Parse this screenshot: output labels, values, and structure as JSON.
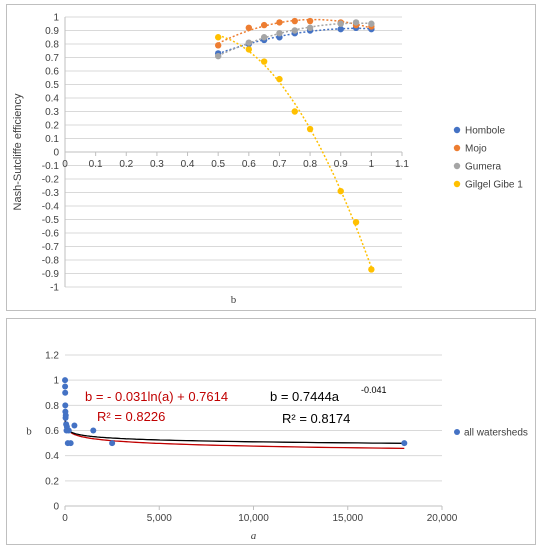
{
  "chart_data": [
    {
      "type": "scatter",
      "xlabel": "b",
      "ylabel": "Nash-Sutcliffe efficiency",
      "xlim": [
        0,
        1.1
      ],
      "ylim": [
        -1,
        1
      ],
      "xticks": [
        "0",
        "0.1",
        "0.2",
        "0.3",
        "0.4",
        "0.5",
        "0.6",
        "0.7",
        "0.8",
        "0.9",
        "1",
        "1.1"
      ],
      "yticks": [
        "1",
        "0.9",
        "0.8",
        "0.7",
        "0.6",
        "0.5",
        "0.4",
        "0.3",
        "0.2",
        "0.1",
        "0",
        "-0.1",
        "-0.2",
        "-0.3",
        "-0.4",
        "-0.5",
        "-0.6",
        "-0.7",
        "-0.8",
        "-0.9",
        "-1"
      ],
      "legend_position": "right",
      "grid": true,
      "series": [
        {
          "name": "Hombole",
          "color": "#4472C4",
          "x": [
            0.5,
            0.6,
            0.65,
            0.7,
            0.75,
            0.8,
            0.9,
            0.95,
            1.0
          ],
          "y": [
            0.73,
            0.8,
            0.83,
            0.85,
            0.88,
            0.9,
            0.91,
            0.92,
            0.91
          ],
          "trend": "poly2"
        },
        {
          "name": "Mojo",
          "color": "#ED7D31",
          "x": [
            0.5,
            0.6,
            0.65,
            0.7,
            0.75,
            0.8,
            0.9,
            0.95,
            1.0
          ],
          "y": [
            0.79,
            0.92,
            0.94,
            0.96,
            0.97,
            0.97,
            0.96,
            0.94,
            0.93
          ],
          "trend": "poly2"
        },
        {
          "name": "Gumera",
          "color": "#A5A5A5",
          "x": [
            0.5,
            0.6,
            0.65,
            0.7,
            0.75,
            0.8,
            0.9,
            0.95,
            1.0
          ],
          "y": [
            0.71,
            0.81,
            0.85,
            0.88,
            0.9,
            0.92,
            0.95,
            0.96,
            0.95
          ],
          "trend": "poly2"
        },
        {
          "name": "Gilgel Gibe 1",
          "color": "#FFC000",
          "x": [
            0.5,
            0.6,
            0.65,
            0.7,
            0.75,
            0.8,
            0.9,
            0.95,
            1.0
          ],
          "y": [
            0.85,
            0.76,
            0.67,
            0.54,
            0.3,
            0.17,
            -0.29,
            -0.52,
            -0.87
          ],
          "trend": "poly2"
        }
      ]
    },
    {
      "type": "scatter",
      "xlabel": "a",
      "ylabel": "b",
      "xlim": [
        0,
        20000
      ],
      "ylim": [
        0,
        1.2
      ],
      "xticks": [
        "0",
        "5,000",
        "10,000",
        "15,000",
        "20,000"
      ],
      "yticks": [
        "1.2",
        "1",
        "0.8",
        "0.6",
        "0.4",
        "0.2",
        "0"
      ],
      "legend_position": "right",
      "grid": true,
      "series": [
        {
          "name": "all watersheds",
          "color": "#4472C4",
          "x": [
            2,
            5,
            10,
            15,
            20,
            30,
            40,
            60,
            80,
            100,
            150,
            200,
            300,
            500,
            1500,
            2500,
            18000
          ],
          "y": [
            1.0,
            0.95,
            0.9,
            0.8,
            0.75,
            0.7,
            0.72,
            0.65,
            0.6,
            0.63,
            0.5,
            0.6,
            0.5,
            0.64,
            0.6,
            0.5,
            0.5
          ]
        }
      ],
      "trendlines": [
        {
          "label": "log",
          "color": "#C00000",
          "equation": "b = - 0.031ln(a) + 0.7614",
          "r2": "R² = 0.8226",
          "coef": -0.031,
          "intercept": 0.7614
        },
        {
          "label": "power",
          "color": "#000000",
          "equation_main": "b = 0.7444a",
          "equation_exp": "-0.041",
          "r2": "R² = 0.8174",
          "coef": 0.7444,
          "exponent": -0.041
        }
      ]
    }
  ]
}
